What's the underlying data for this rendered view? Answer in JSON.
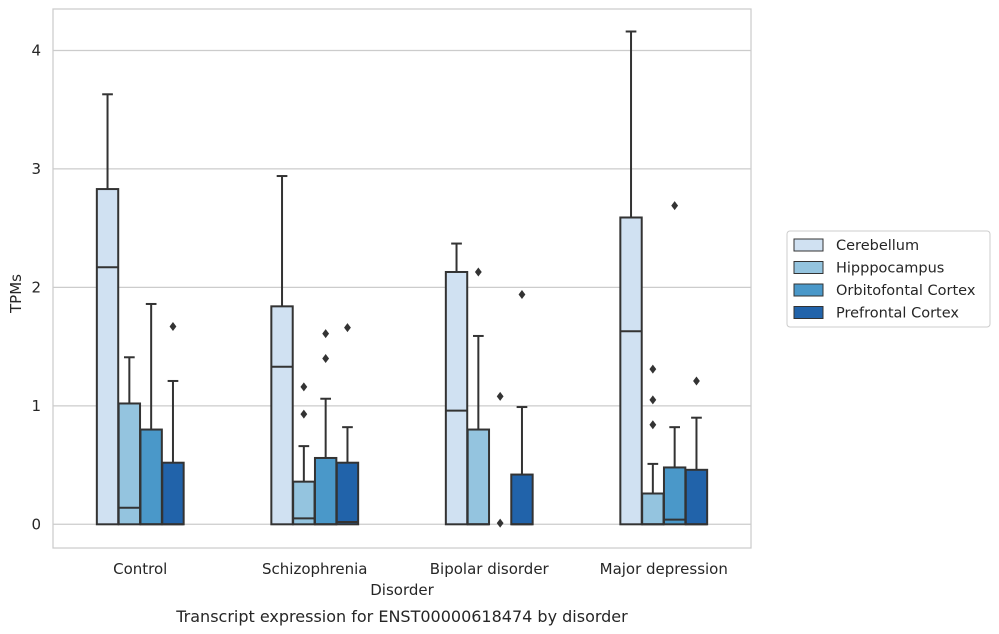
{
  "chart_data": {
    "type": "box",
    "title": "",
    "caption": "Transcript expression for ENST00000618474 by disorder",
    "xlabel": "Disorder",
    "ylabel": "TPMs",
    "ylim": [
      -0.2,
      4.35
    ],
    "yticks": [
      0,
      1,
      2,
      3,
      4
    ],
    "grid": "horizontal",
    "legend_position": "right",
    "categories": [
      "Control",
      "Schizophrenia",
      "Bipolar disorder",
      "Major depression"
    ],
    "series": [
      {
        "name": "Cerebellum",
        "color": "#d0e1f2",
        "boxes": [
          {
            "q1": 0,
            "median": 2.17,
            "q3": 2.83,
            "whisker_low": 0,
            "whisker_high": 3.63,
            "outliers": []
          },
          {
            "q1": 0,
            "median": 1.33,
            "q3": 1.84,
            "whisker_low": 0,
            "whisker_high": 2.94,
            "outliers": []
          },
          {
            "q1": 0,
            "median": 0.96,
            "q3": 2.13,
            "whisker_low": 0,
            "whisker_high": 2.37,
            "outliers": []
          },
          {
            "q1": 0,
            "median": 1.63,
            "q3": 2.59,
            "whisker_low": 0,
            "whisker_high": 4.16,
            "outliers": []
          }
        ]
      },
      {
        "name": "Hipppocampus",
        "color": "#94c4df",
        "boxes": [
          {
            "q1": 0,
            "median": 0.14,
            "q3": 1.02,
            "whisker_low": 0,
            "whisker_high": 1.41,
            "outliers": []
          },
          {
            "q1": 0,
            "median": 0.05,
            "q3": 0.36,
            "whisker_low": 0,
            "whisker_high": 0.66,
            "outliers": [
              0.93,
              1.16
            ]
          },
          {
            "q1": 0,
            "median": 0,
            "q3": 0.8,
            "whisker_low": 0,
            "whisker_high": 1.59,
            "outliers": [
              2.13
            ]
          },
          {
            "q1": 0,
            "median": 0,
            "q3": 0.26,
            "whisker_low": 0,
            "whisker_high": 0.51,
            "outliers": [
              0.84,
              1.05,
              1.31
            ]
          }
        ]
      },
      {
        "name": "Orbitofontal Cortex",
        "color": "#4a98c9",
        "boxes": [
          {
            "q1": 0,
            "median": 0,
            "q3": 0.8,
            "whisker_low": 0,
            "whisker_high": 1.86,
            "outliers": []
          },
          {
            "q1": 0,
            "median": 0,
            "q3": 0.56,
            "whisker_low": 0,
            "whisker_high": 1.06,
            "outliers": [
              1.4,
              1.61
            ]
          },
          {
            "q1": 0,
            "median": 0,
            "q3": 0,
            "whisker_low": 0,
            "whisker_high": 0,
            "outliers": [
              0.01,
              1.08
            ]
          },
          {
            "q1": 0,
            "median": 0.04,
            "q3": 0.48,
            "whisker_low": 0,
            "whisker_high": 0.82,
            "outliers": [
              2.69
            ]
          }
        ]
      },
      {
        "name": "Prefrontal Cortex",
        "color": "#2163aa",
        "boxes": [
          {
            "q1": 0,
            "median": 0,
            "q3": 0.52,
            "whisker_low": 0,
            "whisker_high": 1.21,
            "outliers": [
              1.67
            ]
          },
          {
            "q1": 0,
            "median": 0.02,
            "q3": 0.52,
            "whisker_low": 0,
            "whisker_high": 0.82,
            "outliers": [
              1.66
            ]
          },
          {
            "q1": 0,
            "median": 0,
            "q3": 0.42,
            "whisker_low": 0,
            "whisker_high": 0.99,
            "outliers": [
              1.94
            ]
          },
          {
            "q1": 0,
            "median": 0,
            "q3": 0.46,
            "whisker_low": 0,
            "whisker_high": 0.9,
            "outliers": [
              1.21
            ]
          }
        ]
      }
    ]
  }
}
